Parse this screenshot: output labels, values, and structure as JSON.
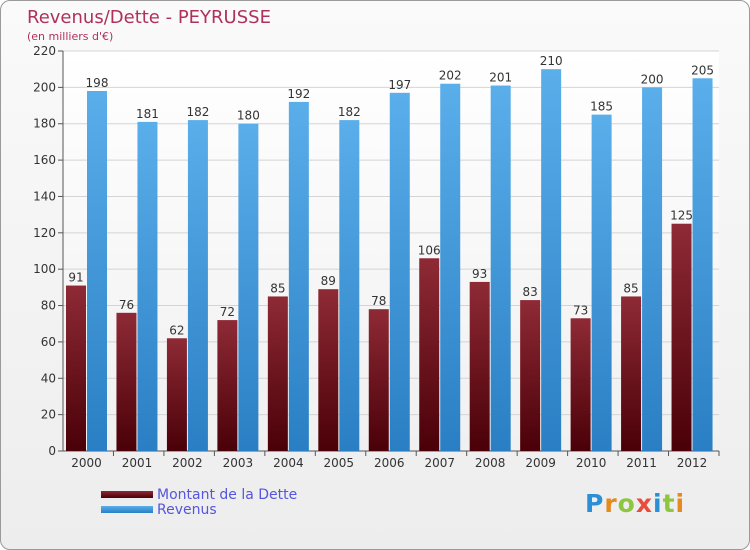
{
  "chart_data": {
    "type": "bar",
    "title": "Revenus/Dette - PEYRUSSE",
    "subtitle": "(en milliers d'€)",
    "categories": [
      "2000",
      "2001",
      "2002",
      "2003",
      "2004",
      "2005",
      "2006",
      "2007",
      "2008",
      "2009",
      "2010",
      "2011",
      "2012"
    ],
    "series": [
      {
        "name": "Montant de la Dette",
        "color": "#7a1a22",
        "values": [
          91,
          76,
          62,
          72,
          85,
          89,
          78,
          106,
          93,
          83,
          73,
          85,
          125
        ]
      },
      {
        "name": "Revenus",
        "color": "#3d9ae0",
        "values": [
          198,
          181,
          182,
          180,
          192,
          182,
          197,
          202,
          201,
          210,
          185,
          200,
          205
        ]
      }
    ],
    "ylim": [
      0,
      220
    ],
    "yticks": [
      0,
      20,
      40,
      60,
      80,
      100,
      120,
      140,
      160,
      180,
      200,
      220
    ],
    "grid": true,
    "legend": "bottom-left"
  },
  "logo": {
    "letters": [
      "P",
      "r",
      "o",
      "x",
      "i",
      "t",
      "i"
    ],
    "colors": [
      "#2b8fd8",
      "#e58a1f",
      "#8dc63f",
      "#e84c3d",
      "#2b8fd8",
      "#8dc63f",
      "#e58a1f"
    ]
  }
}
